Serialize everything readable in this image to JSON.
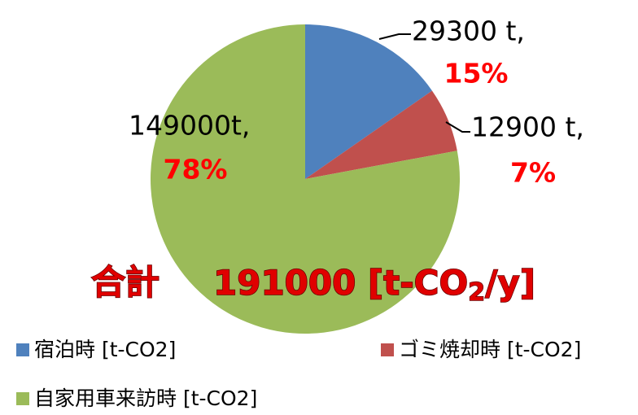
{
  "chart_data": {
    "type": "pie",
    "categories": [
      "宿泊時 [t-CO2]",
      "ゴミ焼却時 [t-CO2]",
      "自家用車来訪時 [t-CO2]"
    ],
    "values": [
      29300,
      12900,
      149000
    ],
    "value_labels": [
      "29300 t,",
      "12900 t,",
      "149000t,"
    ],
    "percent_labels": [
      "15%",
      "7%",
      "78%"
    ],
    "colors": [
      "#4f81bd",
      "#c0504d",
      "#9bbb59"
    ],
    "annotation": {
      "label": "合計",
      "total_main": "191000 [t-CO",
      "total_sub": "2",
      "total_end": "/y]"
    },
    "legend": "bottom"
  }
}
